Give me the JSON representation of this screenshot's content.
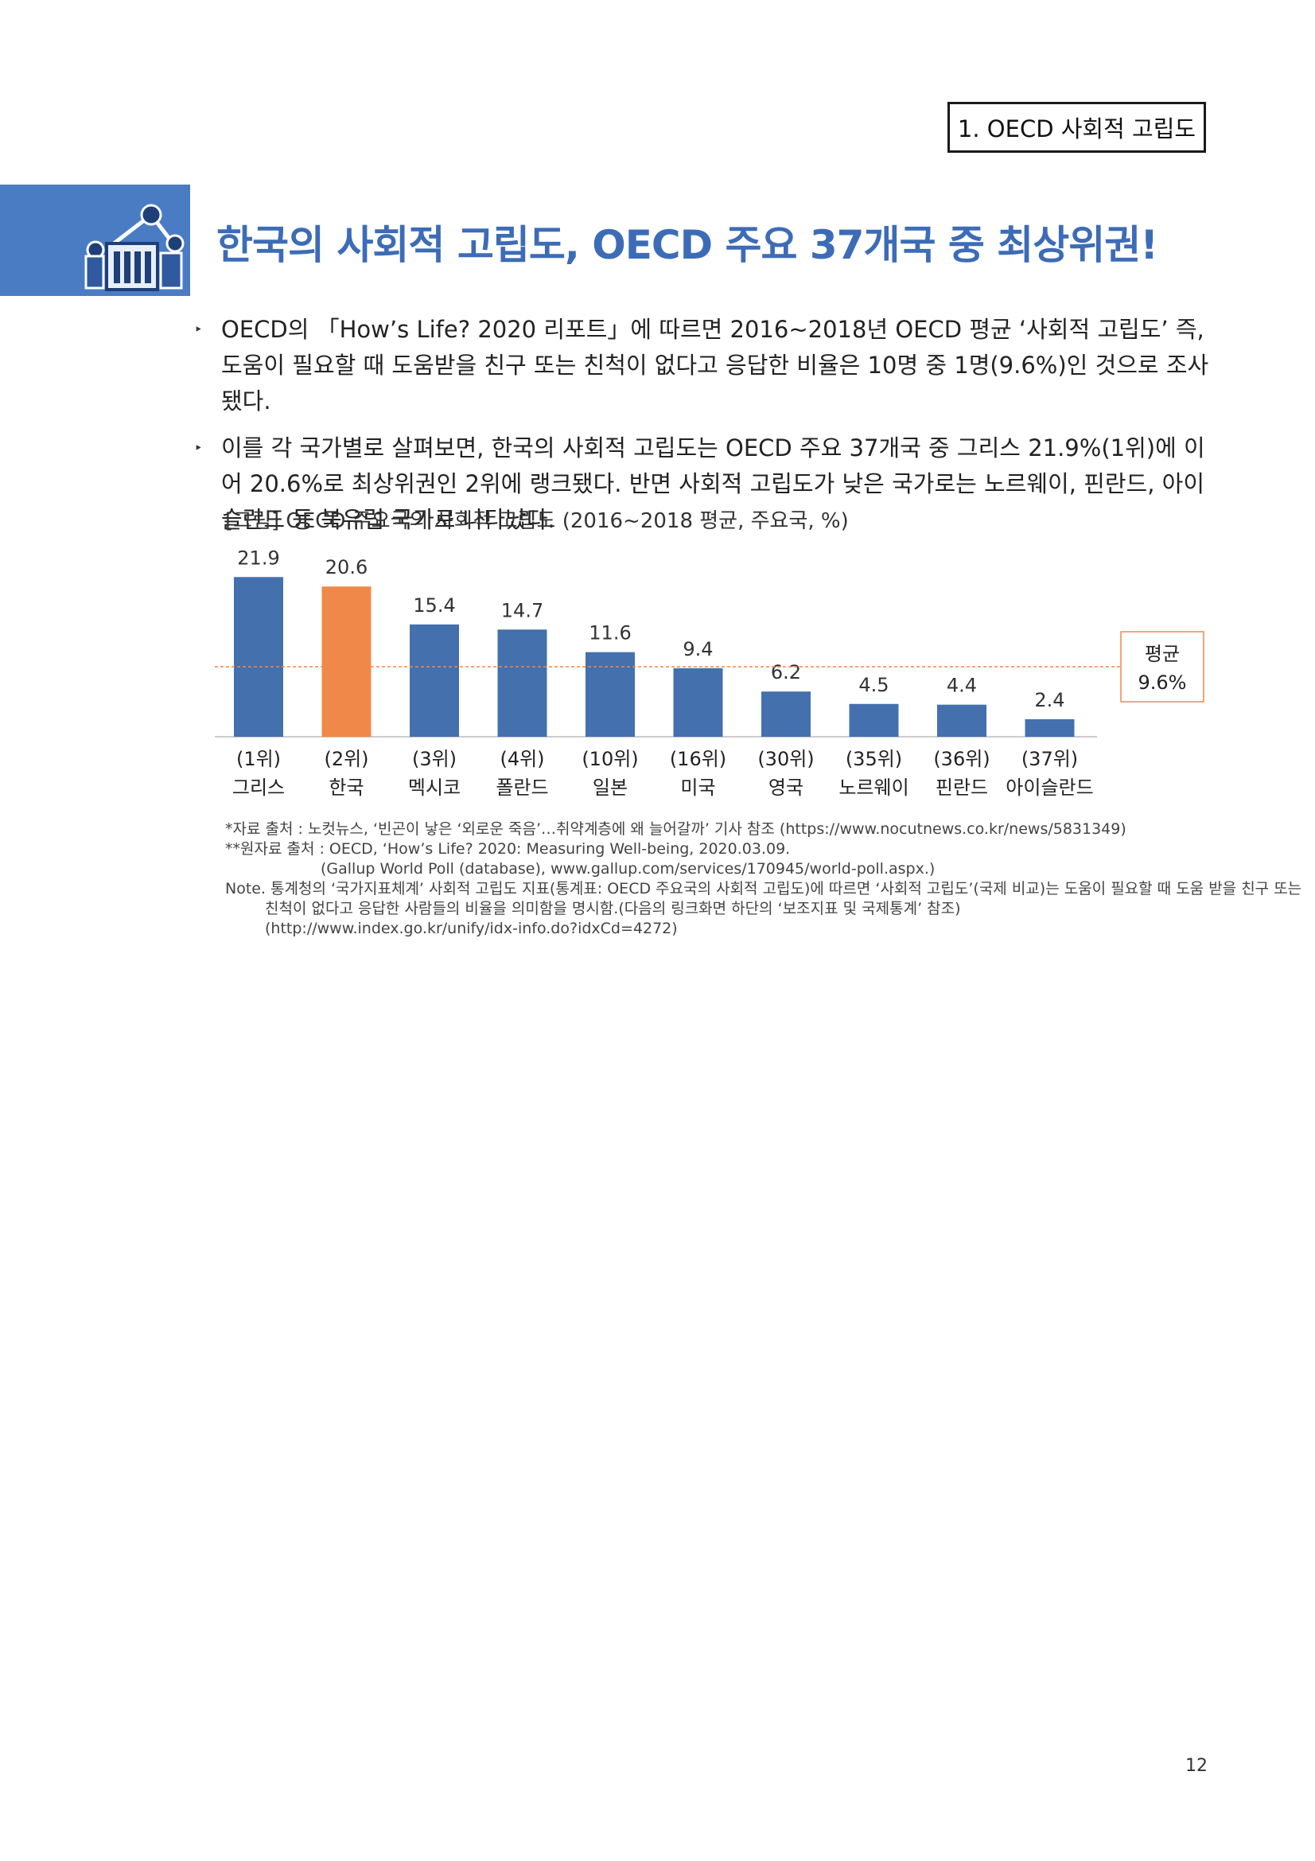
{
  "header": {
    "section_label": "1. OECD 사회적 고립도",
    "title": "한국의 사회적 고립도, OECD 주요 37개국 중 최상위권!"
  },
  "icon": "network-building-icon",
  "bullets": [
    "OECD의 「How’s Life? 2020 리포트」에 따르면 2016~2018년 OECD 평균 ‘사회적 고립도’ 즉, 도움이 필요할 때 도움받을 친구 또는 친척이 없다고 응답한 비율은 10명 중 1명(9.6%)인 것으로 조사됐다.",
    "이를 각 국가별로 살펴보면, 한국의 사회적 고립도는 OECD 주요 37개국 중 그리스 21.9%(1위)에 이어 20.6%로 최상위권인 2위에 랭크됐다. 반면 사회적 고립도가 낮은 국가로는 노르웨이, 핀란드, 아이슬란드 등 북유럽 국가로 나타났다."
  ],
  "figure_caption": "[그림] OECD 주요국의 사회적 고립도 (2016~2018 평균, 주요국, %)",
  "chart_data": {
    "type": "bar",
    "title": "[그림] OECD 주요국의 사회적 고립도 (2016~2018 평균, 주요국, %)",
    "categories": [
      "그리스",
      "한국",
      "멕시코",
      "폴란드",
      "일본",
      "미국",
      "영국",
      "노르웨이",
      "핀란드",
      "아이슬란드"
    ],
    "ranks": [
      "(1위)",
      "(2위)",
      "(3위)",
      "(4위)",
      "(10위)",
      "(16위)",
      "(30위)",
      "(35위)",
      "(36위)",
      "(37위)"
    ],
    "values": [
      21.9,
      20.6,
      15.4,
      14.7,
      11.6,
      9.4,
      6.2,
      4.5,
      4.4,
      2.4
    ],
    "value_labels": [
      "21.9",
      "20.6",
      "15.4",
      "14.7",
      "11.6",
      "9.4",
      "6.2",
      "4.5",
      "4.4",
      "2.4"
    ],
    "highlight_index": 1,
    "average": {
      "value": 9.6,
      "label_line1": "평균",
      "label_line2": "9.6%"
    },
    "colors": {
      "bar": "#4470ad",
      "highlight": "#f0884a",
      "average_line": "#f0884a",
      "average_box_border": "#f0884a"
    },
    "ylim": [
      0,
      24
    ],
    "grid": false,
    "legend": "none"
  },
  "notes": [
    "*자료 출처 : 노컷뉴스, ‘빈곤이 낳은 ‘외로운 죽음’…취약계층에 왜 늘어갈까’ 기사 참조 (https://www.nocutnews.co.kr/news/5831349)",
    "**원자료 출처 : OECD, ‘How’s Life? 2020: Measuring Well-being, 2020.03.09.",
    "(Gallup World Poll (database), www.gallup.com/services/170945/world-poll.aspx.)",
    "Note. 통계청의 ‘국가지표체계’ 사회적 고립도 지표(통계표: OECD 주요국의 사회적 고립도)에 따르면 ‘사회적 고립도’(국제 비교)는 도움이 필요할 때 도움 받을 친구 또는",
    "친척이 없다고 응답한 사람들의 비율을 의미함을 명시함.(다음의 링크화면 하단의 ‘보조지표 및 국제통계’ 참조)",
    "(http://www.index.go.kr/unify/idx-info.do?idxCd=4272)"
  ],
  "page_number": "12"
}
